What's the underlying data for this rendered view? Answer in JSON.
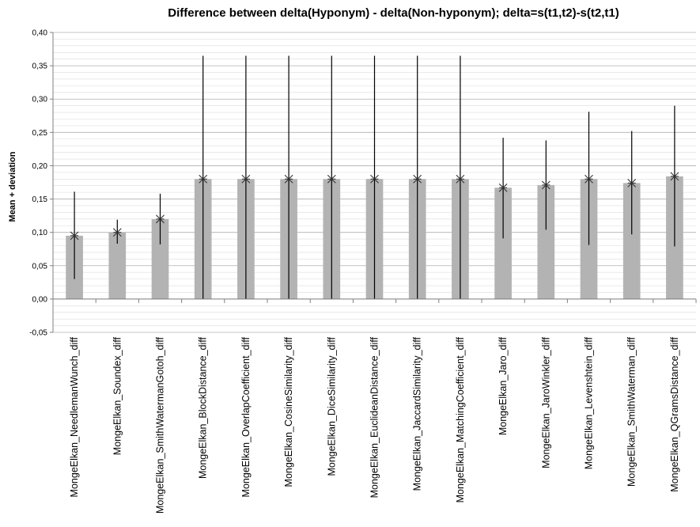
{
  "chart_data": {
    "type": "bar",
    "title": "Difference between delta(Hyponym) - delta(Non-hyponym); delta=s(t1,t2)-s(t2,t1)",
    "ylabel": "Mean + deviation",
    "xlabel": "",
    "ylim": [
      -0.05,
      0.4
    ],
    "ytick_step": 0.05,
    "ytick_labels": [
      "-0,05",
      "0,00",
      "0,05",
      "0,10",
      "0,15",
      "0,20",
      "0,25",
      "0,30",
      "0,35",
      "0,40"
    ],
    "grid": true,
    "legend": "none",
    "colors": {
      "bar": "#b3b3b3",
      "errorbar": "#000000",
      "grid": "#b0b0b0",
      "axis": "#808080"
    },
    "categories": [
      "MongeElkan_NeedlemanWunch_diff",
      "MongeElkan_Soundex_diff",
      "MongeElkan_SmithWatermanGotoh_diff",
      "MongeElkan_BlockDistance_diff",
      "MongeElkan_OverlapCoefficient_diff",
      "MongeElkan_CosineSimilarity_diff",
      "MongeElkan_DiceSimilarity_diff",
      "MongeElkan_EuclideanDistance_diff",
      "MongeElkan_JaccardSimilarity_diff",
      "MongeElkan_MatchingCoefficient_diff",
      "MongeElkan_Jaro_diff",
      "MongeElkan_JaroWinkler_diff",
      "MongeElkan_Levenshtein_diff",
      "MongeElkan_SmithWaterman_diff",
      "MongeElkan_QGramsDistance_diff"
    ],
    "values": [
      0.095,
      0.1,
      0.12,
      0.18,
      0.18,
      0.18,
      0.18,
      0.18,
      0.18,
      0.18,
      0.167,
      0.171,
      0.18,
      0.174,
      0.184
    ],
    "error_low": [
      0.03,
      0.083,
      0.082,
      0.0,
      0.0,
      0.0,
      0.0,
      0.0,
      0.0,
      0.0,
      0.091,
      0.104,
      0.081,
      0.097,
      0.079
    ],
    "error_high": [
      0.161,
      0.119,
      0.158,
      0.365,
      0.365,
      0.365,
      0.365,
      0.365,
      0.365,
      0.365,
      0.242,
      0.238,
      0.281,
      0.252,
      0.29
    ]
  }
}
